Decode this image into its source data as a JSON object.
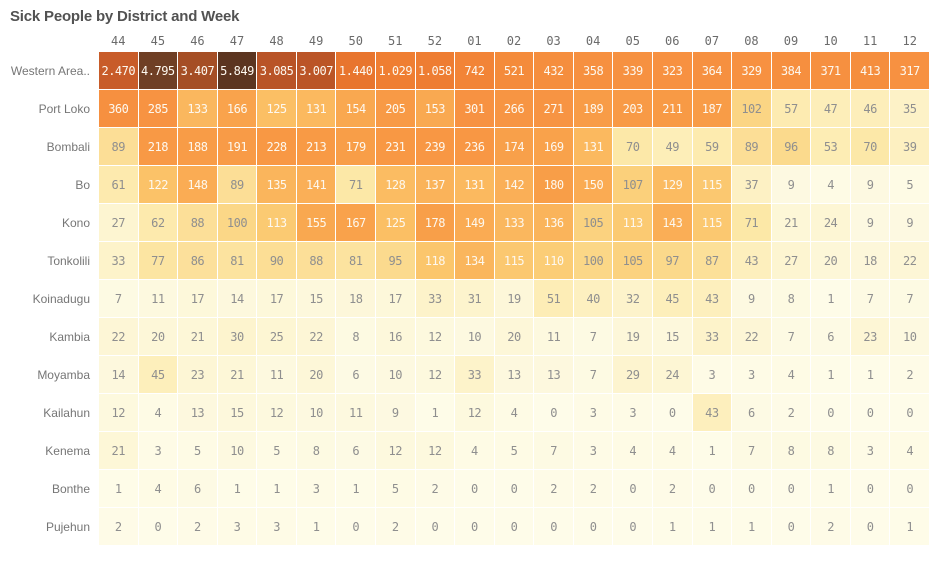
{
  "title": "Sick People by District and Week",
  "style": {
    "background": "#ffffff",
    "title_color": "#525252",
    "column_header_color": "#6b6b6b",
    "row_label_color": "#767676",
    "cell_text_dark": "#8f8f8f",
    "cell_text_light": "#fdf8ef",
    "white_text_min": 110,
    "palette_stops": [
      [
        0,
        "#fefce9"
      ],
      [
        10,
        "#fdf9e0"
      ],
      [
        20,
        "#fdf7d8"
      ],
      [
        30,
        "#fdf4ce"
      ],
      [
        40,
        "#fdf0c0"
      ],
      [
        55,
        "#fdecb2"
      ],
      [
        70,
        "#fce8a8"
      ],
      [
        85,
        "#fce19c"
      ],
      [
        100,
        "#fbd787"
      ],
      [
        110,
        "#fbcd76"
      ],
      [
        125,
        "#fbbf64"
      ],
      [
        140,
        "#fab058"
      ],
      [
        160,
        "#f9a54d"
      ],
      [
        185,
        "#f89c47"
      ],
      [
        230,
        "#f89844"
      ],
      [
        300,
        "#f79242"
      ],
      [
        420,
        "#f58e3e"
      ],
      [
        600,
        "#f38839"
      ],
      [
        800,
        "#f18336"
      ],
      [
        1100,
        "#ee7c31"
      ],
      [
        1500,
        "#e7742e"
      ],
      [
        2000,
        "#d9682b"
      ],
      [
        2500,
        "#c75b29"
      ],
      [
        3100,
        "#b95427"
      ],
      [
        3500,
        "#9f4c25"
      ],
      [
        4200,
        "#814326"
      ],
      [
        4800,
        "#6f3f25"
      ],
      [
        5849,
        "#5c3520"
      ]
    ]
  },
  "chart_data": {
    "type": "heatmap",
    "title": "Sick People by District and Week",
    "x_dimension": "Week",
    "y_dimension": "District",
    "value_range": [
      0,
      5849
    ],
    "thousands_separator": ".",
    "legend": "none",
    "columns": [
      "44",
      "45",
      "46",
      "47",
      "48",
      "49",
      "50",
      "51",
      "52",
      "01",
      "02",
      "03",
      "04",
      "05",
      "06",
      "07",
      "08",
      "09",
      "10",
      "11",
      "12"
    ],
    "rows": [
      {
        "district": "Western Area..",
        "values": [
          2470,
          4795,
          3407,
          5849,
          3085,
          3007,
          1440,
          1029,
          1058,
          742,
          521,
          432,
          358,
          339,
          323,
          364,
          329,
          384,
          371,
          413,
          317
        ]
      },
      {
        "district": "Port Loko",
        "values": [
          360,
          285,
          133,
          166,
          125,
          131,
          154,
          205,
          153,
          301,
          266,
          271,
          189,
          203,
          211,
          187,
          102,
          57,
          47,
          46,
          35
        ]
      },
      {
        "district": "Bombali",
        "values": [
          89,
          218,
          188,
          191,
          228,
          213,
          179,
          231,
          239,
          236,
          174,
          169,
          131,
          70,
          49,
          59,
          89,
          96,
          53,
          70,
          39
        ]
      },
      {
        "district": "Bo",
        "values": [
          61,
          122,
          148,
          89,
          135,
          141,
          71,
          128,
          137,
          131,
          142,
          180,
          150,
          107,
          129,
          115,
          37,
          9,
          4,
          9,
          5
        ]
      },
      {
        "district": "Kono",
        "values": [
          27,
          62,
          88,
          100,
          113,
          155,
          167,
          125,
          178,
          149,
          133,
          136,
          105,
          113,
          143,
          115,
          71,
          21,
          24,
          9,
          9
        ]
      },
      {
        "district": "Tonkolili",
        "values": [
          33,
          77,
          86,
          81,
          90,
          88,
          81,
          95,
          118,
          134,
          115,
          110,
          100,
          105,
          97,
          87,
          43,
          27,
          20,
          18,
          22
        ]
      },
      {
        "district": "Koinadugu",
        "values": [
          7,
          11,
          17,
          14,
          17,
          15,
          18,
          17,
          33,
          31,
          19,
          51,
          40,
          32,
          45,
          43,
          9,
          8,
          1,
          7,
          7
        ]
      },
      {
        "district": "Kambia",
        "values": [
          22,
          20,
          21,
          30,
          25,
          22,
          8,
          16,
          12,
          10,
          20,
          11,
          7,
          19,
          15,
          33,
          22,
          7,
          6,
          23,
          10
        ]
      },
      {
        "district": "Moyamba",
        "values": [
          14,
          45,
          23,
          21,
          11,
          20,
          6,
          10,
          12,
          33,
          13,
          13,
          7,
          29,
          24,
          3,
          3,
          4,
          1,
          1,
          2
        ]
      },
      {
        "district": "Kailahun",
        "values": [
          12,
          4,
          13,
          15,
          12,
          10,
          11,
          9,
          1,
          12,
          4,
          0,
          3,
          3,
          0,
          43,
          6,
          2,
          0,
          0,
          0
        ]
      },
      {
        "district": "Kenema",
        "values": [
          21,
          3,
          5,
          10,
          5,
          8,
          6,
          12,
          12,
          4,
          5,
          7,
          3,
          4,
          4,
          1,
          7,
          8,
          8,
          3,
          4
        ]
      },
      {
        "district": "Bonthe",
        "values": [
          1,
          4,
          6,
          1,
          1,
          3,
          1,
          5,
          2,
          0,
          0,
          2,
          2,
          0,
          2,
          0,
          0,
          0,
          1,
          0,
          0
        ]
      },
      {
        "district": "Pujehun",
        "values": [
          2,
          0,
          2,
          3,
          3,
          1,
          0,
          2,
          0,
          0,
          0,
          0,
          0,
          0,
          1,
          1,
          1,
          0,
          2,
          0,
          1
        ]
      }
    ]
  }
}
